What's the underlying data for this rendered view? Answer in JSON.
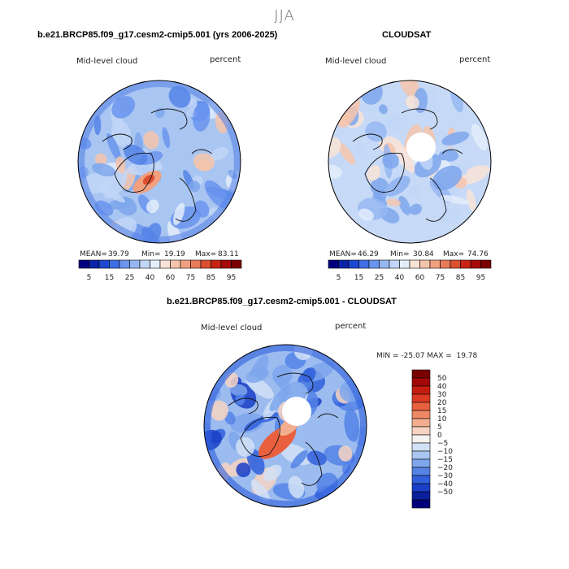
{
  "suptitle": "JJA",
  "chart_data": [
    {
      "type": "heatmap",
      "projection": "north polar stereographic",
      "title": "b.e21.BRCP85.f09_g17.cesm2-cmip5.001 (yrs 2006-2025)",
      "variable": "Mid-level cloud",
      "units": "percent",
      "stats": {
        "mean_label": "MEAN=",
        "mean": "39.79",
        "min_label": "Min=",
        "min": "19.19",
        "max_label": "Max=",
        "max": "83.11"
      },
      "colorbar": {
        "tick_labels": [
          "5",
          "15",
          "25",
          "40",
          "60",
          "75",
          "85",
          "95"
        ],
        "colors": [
          "#00007f",
          "#0a24a8",
          "#1f48d2",
          "#3f6ee6",
          "#6a94ee",
          "#95b7f2",
          "#c2d6f7",
          "#e3ecfa",
          "#f9e3d7",
          "#f6c4ab",
          "#f0a07f",
          "#e77a58",
          "#dc4f30",
          "#c92316",
          "#a70a0a",
          "#7a0000"
        ]
      }
    },
    {
      "type": "heatmap",
      "projection": "north polar stereographic",
      "title": "CLOUDSAT",
      "variable": "Mid-level cloud",
      "units": "percent",
      "stats": {
        "mean_label": "MEAN=",
        "mean": "46.29",
        "min_label": "Min=",
        "min": "30.84",
        "max_label": "Max=",
        "max": "74.76"
      },
      "colorbar": {
        "tick_labels": [
          "5",
          "15",
          "25",
          "40",
          "60",
          "75",
          "85",
          "95"
        ],
        "colors": [
          "#00007f",
          "#0a24a8",
          "#1f48d2",
          "#3f6ee6",
          "#6a94ee",
          "#95b7f2",
          "#c2d6f7",
          "#e3ecfa",
          "#f9e3d7",
          "#f6c4ab",
          "#f0a07f",
          "#e77a58",
          "#dc4f30",
          "#c92316",
          "#a70a0a",
          "#7a0000"
        ]
      }
    },
    {
      "type": "heatmap",
      "projection": "north polar stereographic",
      "title": "b.e21.BRCP85.f09_g17.cesm2-cmip5.001 - CLOUDSAT",
      "variable": "Mid-level cloud",
      "units": "percent",
      "stats_text": "MIN = -25.07 MAX =  19.78",
      "colorbar": {
        "tick_labels": [
          "50",
          "40",
          "30",
          "20",
          "15",
          "10",
          "5",
          "0",
          "−5",
          "−10",
          "−15",
          "−20",
          "−30",
          "−40",
          "−50"
        ],
        "colors": [
          "#7a0000",
          "#a30808",
          "#c51d10",
          "#dc3a22",
          "#e8603e",
          "#ef8864",
          "#f3ae90",
          "#f7d3c2",
          "#f5f3f0",
          "#d2e2f6",
          "#a9c5f1",
          "#7ea6ec",
          "#5584e6",
          "#3160dc",
          "#1a3ec6",
          "#0b1f9c",
          "#00007a"
        ]
      }
    }
  ]
}
